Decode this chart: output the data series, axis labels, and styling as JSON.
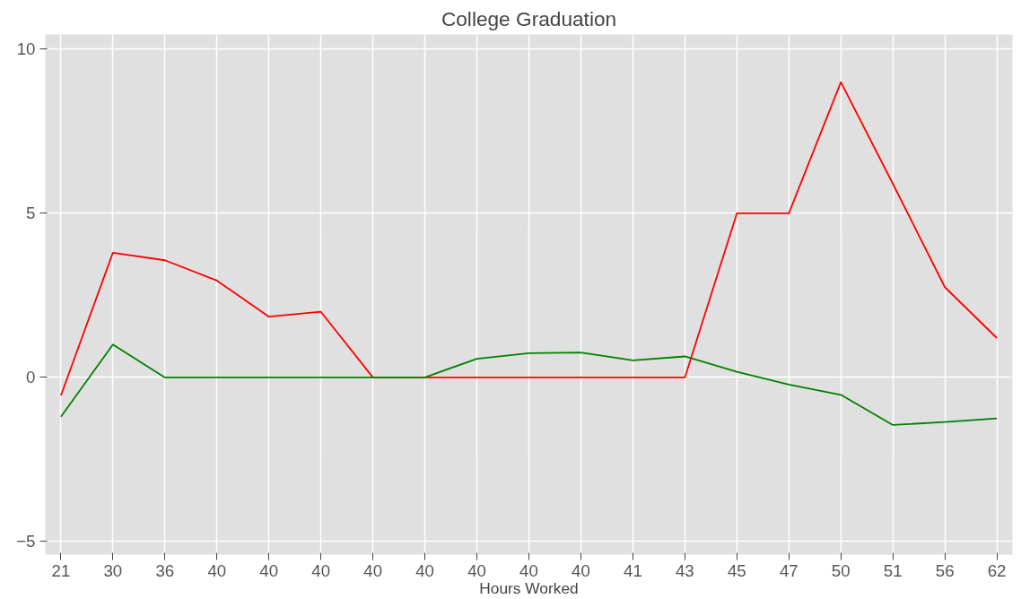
{
  "chart_data": {
    "type": "line",
    "title": "College Graduation",
    "xlabel": "Hours Worked",
    "categories": [
      "21",
      "30",
      "36",
      "40",
      "40",
      "40",
      "40",
      "40",
      "40",
      "40",
      "40",
      "41",
      "43",
      "45",
      "47",
      "50",
      "51",
      "56",
      "62"
    ],
    "series": [
      {
        "color": "#ff0000",
        "values": [
          -0.55,
          3.8,
          3.57,
          2.95,
          1.85,
          2.0,
          0,
          0,
          0,
          0,
          0,
          0,
          0,
          5,
          5,
          9,
          5.9,
          2.75,
          1.2
        ]
      },
      {
        "color": "#008000",
        "values": [
          -1.2,
          1.0,
          0,
          0,
          0,
          0,
          0,
          0,
          0.57,
          0.74,
          0.76,
          0.52,
          0.64,
          0.17,
          -0.22,
          -0.53,
          -1.45,
          -1.36,
          -1.25
        ]
      }
    ],
    "ylim": [
      -5.4,
      10.45
    ],
    "yticks": [
      -5,
      0,
      5,
      10
    ],
    "grid": true
  }
}
